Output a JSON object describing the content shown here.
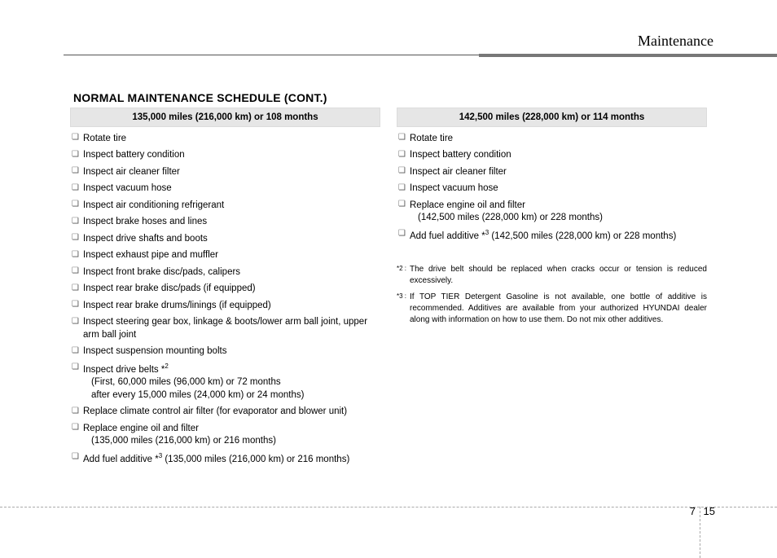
{
  "header": {
    "section_label": "Maintenance"
  },
  "title": "NORMAL MAINTENANCE SCHEDULE (CONT.)",
  "columns": [
    {
      "header": "135,000 miles (216,000 km) or 108 months",
      "items": [
        {
          "text": "Rotate tire"
        },
        {
          "text": "Inspect battery condition"
        },
        {
          "text": "Inspect air cleaner filter"
        },
        {
          "text": "Inspect vacuum hose"
        },
        {
          "text": "Inspect air conditioning refrigerant"
        },
        {
          "text": "Inspect brake hoses and lines"
        },
        {
          "text": "Inspect drive shafts and boots"
        },
        {
          "text": "Inspect exhaust pipe and muffler"
        },
        {
          "text": "Inspect front brake disc/pads, calipers"
        },
        {
          "text": "Inspect rear brake disc/pads (if equipped)"
        },
        {
          "text": "Inspect rear brake drums/linings (if equipped)"
        },
        {
          "text": "Inspect steering gear box, linkage & boots/lower arm ball joint, upper arm ball joint"
        },
        {
          "text": "Inspect suspension mounting bolts"
        },
        {
          "text": "Inspect drive belts *",
          "sup": "2",
          "sub1": "(First, 60,000 miles (96,000 km) or 72 months",
          "sub2": " after every 15,000 miles (24,000 km) or 24 months)"
        },
        {
          "text": "Replace climate control air filter (for evaporator and blower unit)"
        },
        {
          "text": "Replace engine oil and filter",
          "sub1": "(135,000 miles (216,000 km) or 216 months)"
        },
        {
          "text": "Add fuel additive *",
          "sup": "3",
          "tail": " (135,000 miles (216,000 km) or 216 months)"
        }
      ]
    },
    {
      "header": "142,500 miles (228,000 km) or 114 months",
      "items": [
        {
          "text": "Rotate tire"
        },
        {
          "text": "Inspect battery condition"
        },
        {
          "text": "Inspect air cleaner filter"
        },
        {
          "text": "Inspect vacuum hose"
        },
        {
          "text": "Replace engine oil and filter",
          "sub1": "(142,500 miles (228,000 km) or 228 months)"
        },
        {
          "text": "Add fuel additive *",
          "sup": "3",
          "tail": " (142,500 miles (228,000 km) or 228 months)"
        }
      ],
      "footnotes": [
        {
          "mark": "*2 :",
          "body": "The drive belt should be replaced when cracks occur or tension is reduced excessively."
        },
        {
          "mark": "*3 :",
          "body": "If TOP TIER Detergent Gasoline is not available, one bottle of additive is recommended. Additives are available from your authorized HYUNDAI dealer along with information on how to use them. Do not mix other additives."
        }
      ]
    }
  ],
  "footer": {
    "chapter": "7",
    "page": "15"
  },
  "style": {
    "header_bg": "#e6e6e6",
    "text_color": "#000000",
    "dash_color": "#aaaaaa",
    "thick_bar": "#777777"
  }
}
